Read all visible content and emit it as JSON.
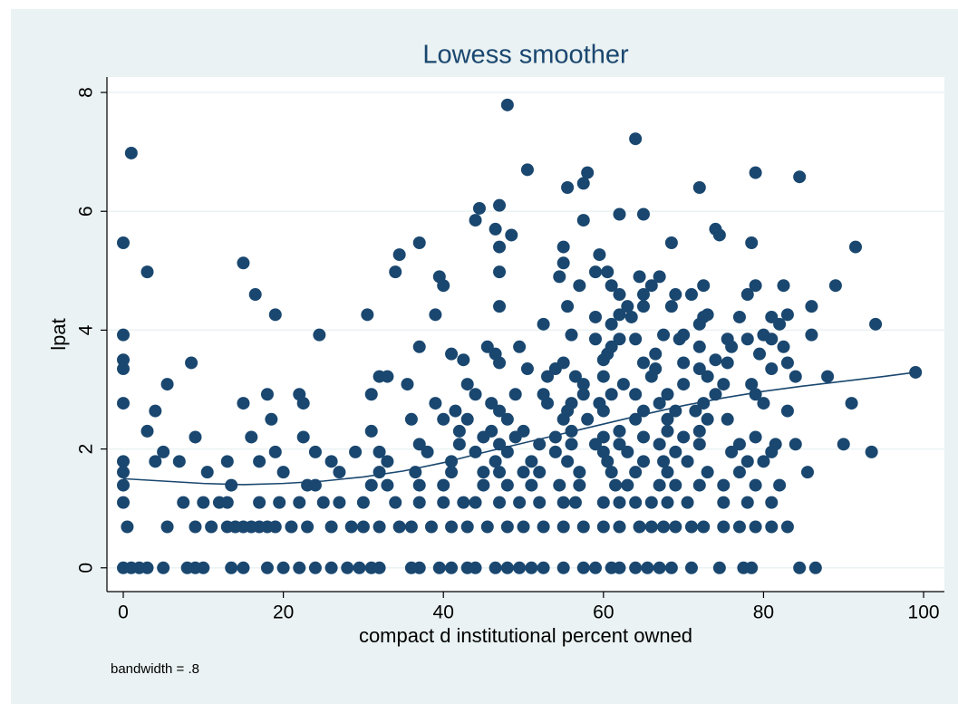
{
  "chart_data": {
    "type": "scatter",
    "title": "Lowess smoother",
    "xlabel": "compact d institutional percent owned",
    "ylabel": "lpat",
    "note": "bandwidth = .8",
    "xlim": [
      -2.04,
      102.6
    ],
    "ylim": [
      -0.4,
      8.26
    ],
    "xticks": [
      0,
      20,
      40,
      60,
      80,
      100
    ],
    "yticks": [
      0,
      2,
      4,
      6,
      8
    ],
    "grid": true,
    "series": [
      {
        "kind": "scatter",
        "color": "#1a476f",
        "x": [
          0,
          1,
          2,
          3,
          5,
          8,
          9,
          10,
          13.5,
          15,
          18,
          20,
          22,
          24,
          26,
          28,
          29.5,
          31,
          32,
          36,
          37,
          39.5,
          41,
          43,
          44,
          46.5,
          48,
          49.5,
          51,
          52.5,
          55,
          57.5,
          59,
          61,
          62,
          64,
          65.5,
          67,
          68.5,
          71,
          74.5,
          77.5,
          78.5,
          84.5,
          86.5,
          0.5,
          5.5,
          9,
          11,
          13,
          14,
          15,
          16,
          17,
          18,
          19,
          21,
          23,
          26,
          28.5,
          30,
          32,
          34.5,
          36,
          38.5,
          41,
          43,
          45.5,
          48,
          50,
          52.5,
          55,
          57.5,
          60,
          62,
          64.5,
          66,
          67.5,
          69,
          71,
          72.5,
          75,
          77,
          79,
          81,
          83,
          0,
          7.5,
          10,
          12,
          13,
          17,
          19.5,
          22,
          25,
          27,
          30,
          34,
          37,
          40,
          42.5,
          44,
          47,
          49.5,
          52,
          55,
          56.5,
          60,
          62,
          64,
          66,
          68,
          70.5,
          75,
          78,
          81,
          0,
          13.5,
          23,
          24,
          31,
          33,
          37,
          40,
          45,
          48,
          51,
          54.5,
          57,
          61.5,
          63,
          67,
          69,
          72,
          75,
          79,
          82,
          0,
          10.5,
          20,
          27,
          32,
          36.5,
          41,
          45,
          47,
          50,
          52,
          57,
          61,
          64,
          68,
          73,
          77,
          85.5,
          0,
          4,
          7,
          13,
          17,
          26,
          33,
          41,
          46.5,
          51,
          55.5,
          60.5,
          65,
          67.5,
          70.5,
          78,
          80,
          5,
          19,
          24,
          29,
          32,
          38,
          44,
          48,
          54,
          60,
          63,
          69,
          76,
          81,
          93.5,
          37,
          42,
          47,
          52,
          56,
          59,
          62,
          67,
          72,
          77,
          81.5,
          84,
          90,
          9,
          16,
          22.5,
          45,
          49,
          54,
          60,
          65,
          70,
          79,
          3,
          31,
          42,
          46,
          50,
          56,
          62,
          68,
          72,
          18.5,
          36,
          40,
          43,
          48,
          55,
          58,
          64,
          68,
          73,
          75.5,
          4,
          41.5,
          47,
          55.5,
          60,
          65,
          69,
          71.5,
          83,
          0,
          15,
          22.5,
          39,
          46,
          53,
          56,
          59.5,
          67,
          72.5,
          80,
          91,
          18,
          22,
          31,
          44,
          49,
          52.5,
          57.5,
          61,
          64,
          68,
          74,
          79,
          5.5,
          35.5,
          43,
          57.5,
          62.5,
          70,
          75,
          78.5,
          32,
          33,
          53,
          56.5,
          60,
          66,
          73,
          84,
          88,
          99,
          0,
          50.5,
          54,
          66.5,
          72,
          81,
          8.5,
          47,
          55,
          65,
          70,
          75.5,
          83,
          0,
          42.5,
          60,
          74,
          41,
          46.5,
          60.5,
          66.5,
          79.5,
          37,
          45.5,
          49.5,
          61,
          72,
          76,
          82.5,
          59,
          62,
          64,
          69.5,
          75.5,
          78,
          81,
          0,
          24.5,
          56,
          67.5,
          70,
          80,
          86,
          52.5,
          61,
          72,
          82,
          94,
          59,
          63.5,
          72.5,
          77,
          81,
          19,
          30.5,
          39,
          62,
          73,
          83,
          47,
          55.5,
          63,
          65,
          68.5,
          86,
          16.5,
          62,
          65,
          69,
          71,
          78,
          40,
          57,
          61,
          66,
          72.5,
          79,
          82.5,
          89,
          39.5,
          54.5,
          64.5,
          67,
          3,
          34,
          47,
          59,
          60.5,
          15,
          55,
          34.5,
          59.5,
          47,
          55,
          91.5,
          0,
          37,
          68.5,
          78.5,
          48.5,
          74.5,
          46.5,
          74,
          44,
          57.5,
          62,
          65,
          44.5,
          47,
          55.5,
          72,
          57.5,
          84.5,
          58,
          79,
          50.5,
          1,
          64,
          48
        ],
        "values": [
          0,
          0,
          0,
          0,
          0,
          0,
          0,
          0,
          0,
          0,
          0,
          0,
          0,
          0,
          0,
          0,
          0,
          0,
          0,
          0,
          0,
          0,
          0,
          0,
          0,
          0,
          0,
          0,
          0,
          0,
          0,
          0,
          0,
          0,
          0,
          0,
          0,
          0,
          0,
          0,
          0,
          0,
          0,
          0,
          0,
          0.69,
          0.69,
          0.69,
          0.69,
          0.69,
          0.69,
          0.69,
          0.69,
          0.69,
          0.69,
          0.69,
          0.69,
          0.69,
          0.69,
          0.69,
          0.69,
          0.69,
          0.69,
          0.69,
          0.69,
          0.69,
          0.69,
          0.69,
          0.69,
          0.69,
          0.69,
          0.69,
          0.69,
          0.69,
          0.69,
          0.69,
          0.69,
          0.69,
          0.69,
          0.69,
          0.69,
          0.69,
          0.69,
          0.69,
          0.69,
          0.69,
          1.1,
          1.1,
          1.1,
          1.1,
          1.1,
          1.1,
          1.1,
          1.1,
          1.1,
          1.1,
          1.1,
          1.1,
          1.1,
          1.1,
          1.1,
          1.1,
          1.1,
          1.1,
          1.1,
          1.1,
          1.1,
          1.1,
          1.1,
          1.1,
          1.1,
          1.1,
          1.1,
          1.1,
          1.1,
          1.1,
          1.39,
          1.39,
          1.39,
          1.39,
          1.39,
          1.39,
          1.39,
          1.39,
          1.39,
          1.39,
          1.39,
          1.39,
          1.39,
          1.39,
          1.39,
          1.39,
          1.39,
          1.39,
          1.39,
          1.39,
          1.39,
          1.61,
          1.61,
          1.61,
          1.61,
          1.61,
          1.61,
          1.61,
          1.61,
          1.61,
          1.61,
          1.61,
          1.61,
          1.61,
          1.61,
          1.61,
          1.61,
          1.61,
          1.61,
          1.79,
          1.79,
          1.79,
          1.79,
          1.79,
          1.79,
          1.79,
          1.79,
          1.79,
          1.79,
          1.79,
          1.79,
          1.79,
          1.79,
          1.79,
          1.79,
          1.79,
          1.95,
          1.95,
          1.95,
          1.95,
          1.95,
          1.95,
          1.95,
          1.95,
          1.95,
          1.95,
          1.95,
          1.95,
          1.95,
          1.95,
          1.95,
          2.08,
          2.08,
          2.08,
          2.08,
          2.08,
          2.08,
          2.08,
          2.08,
          2.08,
          2.08,
          2.08,
          2.08,
          2.08,
          2.2,
          2.2,
          2.2,
          2.2,
          2.2,
          2.2,
          2.2,
          2.2,
          2.2,
          2.2,
          2.3,
          2.3,
          2.3,
          2.3,
          2.3,
          2.3,
          2.3,
          2.3,
          2.3,
          2.5,
          2.5,
          2.5,
          2.5,
          2.5,
          2.5,
          2.5,
          2.5,
          2.5,
          2.5,
          2.5,
          2.64,
          2.64,
          2.64,
          2.64,
          2.64,
          2.64,
          2.64,
          2.64,
          2.64,
          2.77,
          2.77,
          2.77,
          2.77,
          2.77,
          2.77,
          2.77,
          2.77,
          2.77,
          2.77,
          2.77,
          2.77,
          2.92,
          2.92,
          2.92,
          2.92,
          2.92,
          2.92,
          2.92,
          2.92,
          2.92,
          2.92,
          2.92,
          2.92,
          3.09,
          3.09,
          3.09,
          3.09,
          3.09,
          3.09,
          3.09,
          3.09,
          3.22,
          3.22,
          3.22,
          3.22,
          3.22,
          3.22,
          3.22,
          3.22,
          3.22,
          3.29,
          3.35,
          3.35,
          3.35,
          3.35,
          3.35,
          3.35,
          3.45,
          3.45,
          3.45,
          3.45,
          3.45,
          3.45,
          3.45,
          3.5,
          3.5,
          3.5,
          3.5,
          3.6,
          3.6,
          3.6,
          3.6,
          3.6,
          3.72,
          3.72,
          3.72,
          3.72,
          3.72,
          3.72,
          3.72,
          3.85,
          3.85,
          3.85,
          3.85,
          3.85,
          3.85,
          3.85,
          3.92,
          3.92,
          3.92,
          3.92,
          3.92,
          3.92,
          3.92,
          4.1,
          4.1,
          4.1,
          4.1,
          4.1,
          4.22,
          4.22,
          4.22,
          4.22,
          4.22,
          4.26,
          4.26,
          4.26,
          4.26,
          4.26,
          4.26,
          4.4,
          4.4,
          4.4,
          4.4,
          4.4,
          4.4,
          4.6,
          4.6,
          4.6,
          4.6,
          4.6,
          4.6,
          4.75,
          4.75,
          4.75,
          4.75,
          4.75,
          4.75,
          4.75,
          4.75,
          4.9,
          4.9,
          4.9,
          4.9,
          4.98,
          4.98,
          4.98,
          4.98,
          4.98,
          5.13,
          5.13,
          5.27,
          5.27,
          5.4,
          5.4,
          5.4,
          5.47,
          5.47,
          5.47,
          5.47,
          5.6,
          5.6,
          5.7,
          5.7,
          5.85,
          5.85,
          5.95,
          5.95,
          6.05,
          6.1,
          6.4,
          6.4,
          6.47,
          6.58,
          6.65,
          6.65,
          6.7,
          6.98,
          7.22,
          7.79
        ]
      },
      {
        "kind": "line",
        "color": "#1a476f",
        "x": [
          0,
          5,
          10,
          15,
          20,
          25,
          30,
          35,
          40,
          45,
          50,
          55,
          60,
          65,
          70,
          75,
          80,
          85,
          90,
          95,
          99
        ],
        "values": [
          1.5,
          1.46,
          1.42,
          1.4,
          1.42,
          1.46,
          1.53,
          1.63,
          1.77,
          1.94,
          2.1,
          2.26,
          2.42,
          2.58,
          2.73,
          2.86,
          2.97,
          3.06,
          3.14,
          3.22,
          3.29
        ]
      }
    ]
  }
}
